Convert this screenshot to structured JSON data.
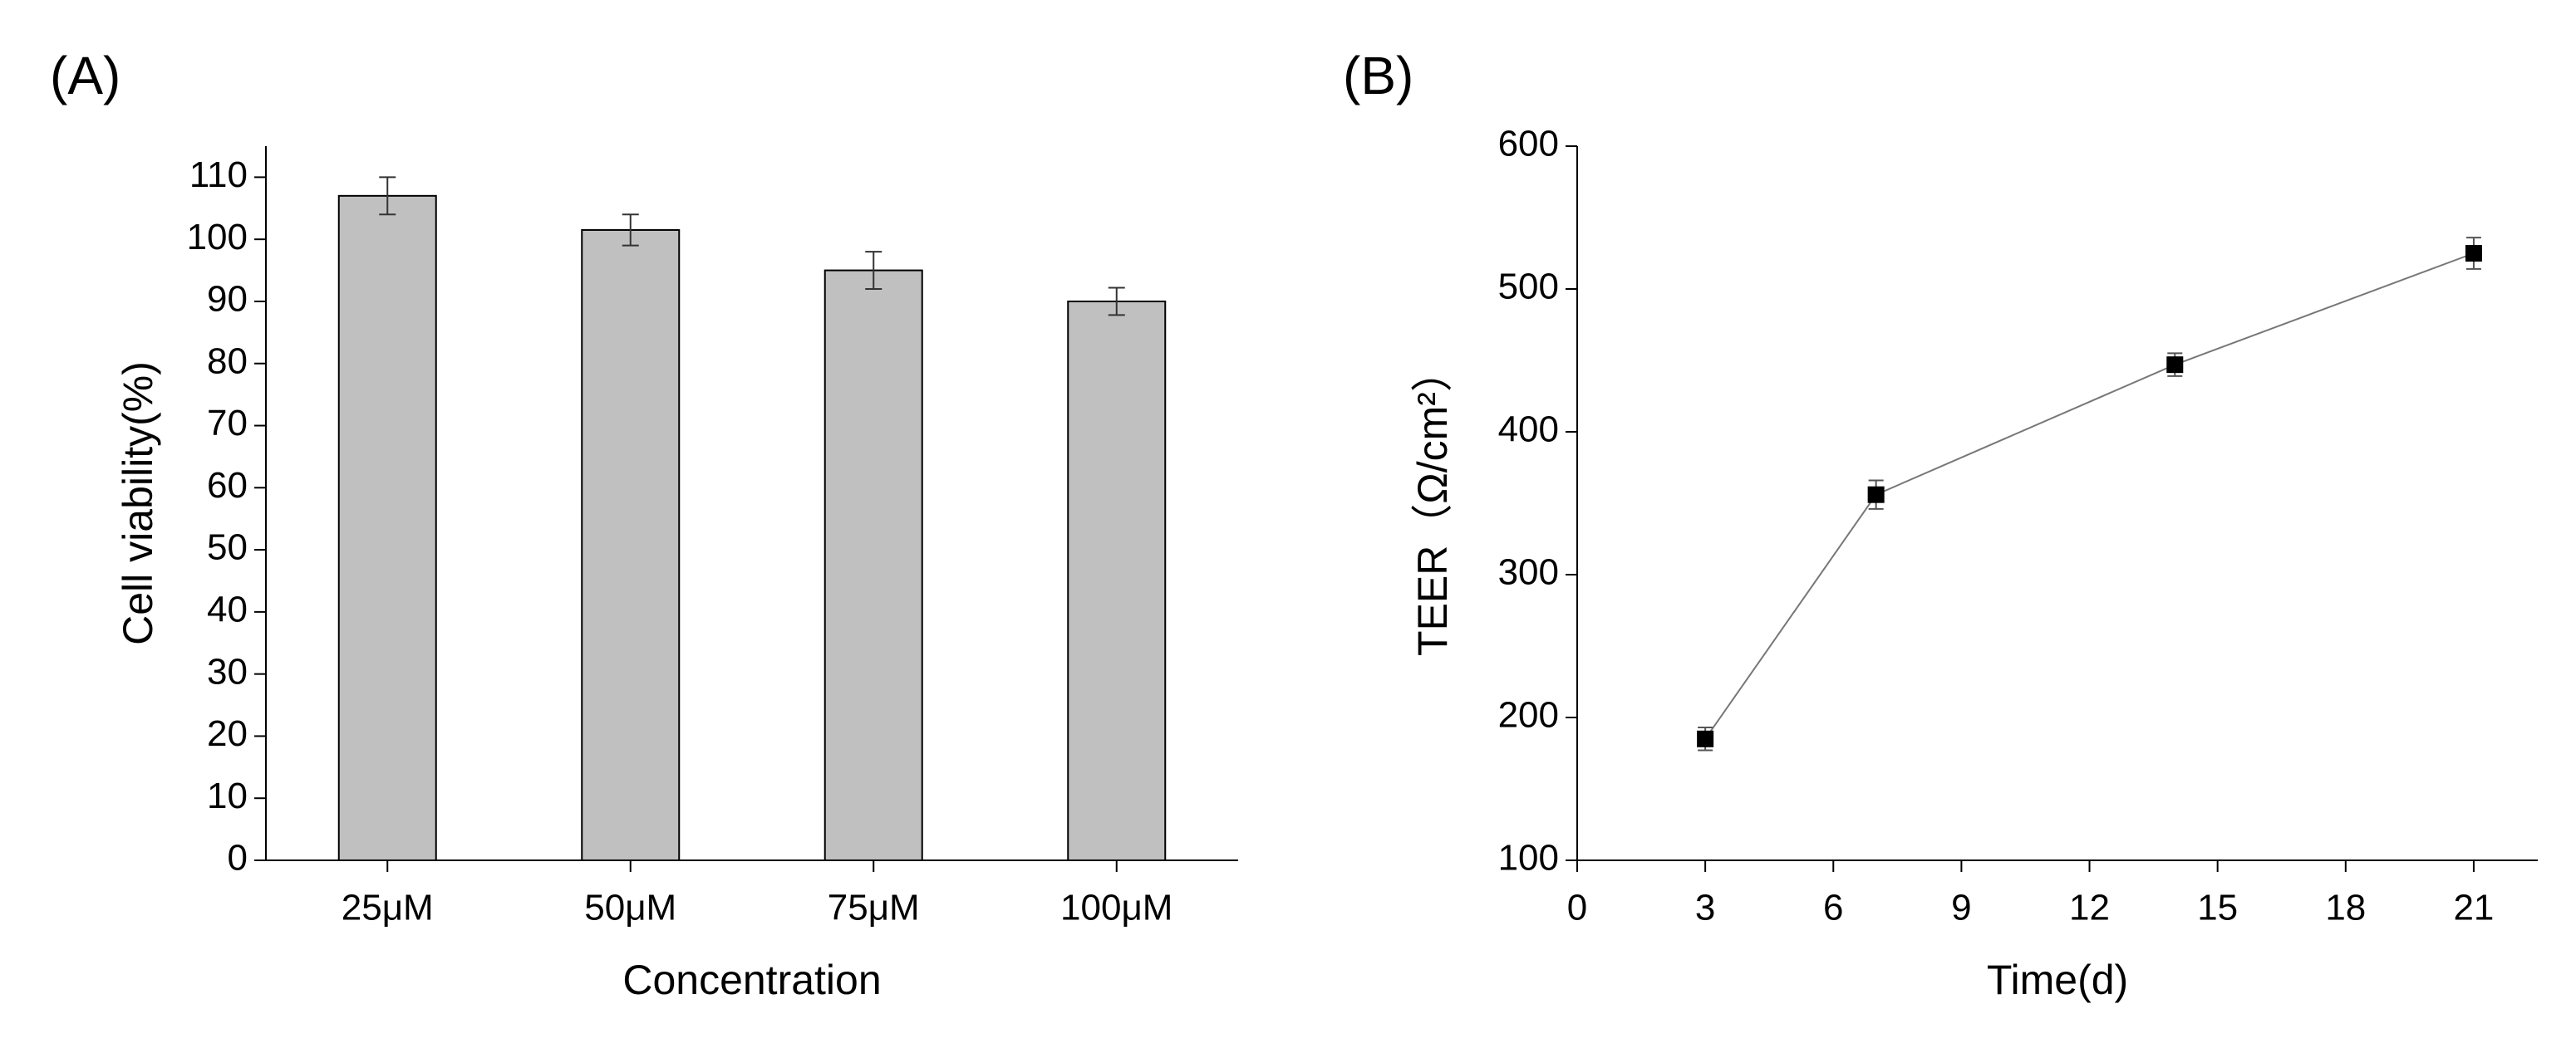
{
  "chart_data": [
    {
      "type": "bar",
      "label": "(A)",
      "xlabel": "Concentration",
      "ylabel": "Cell viability(%)",
      "categories": [
        "25μM",
        "50μM",
        "75μM",
        "100μM"
      ],
      "values": [
        107,
        101.5,
        95,
        90
      ],
      "errors": [
        3,
        2.5,
        3,
        2.2
      ],
      "color": "#c0c0c0",
      "ylim": [
        0,
        115
      ],
      "yticks": [
        0,
        10,
        20,
        30,
        40,
        50,
        60,
        70,
        80,
        90,
        100,
        110
      ]
    },
    {
      "type": "line",
      "label": "(B)",
      "xlabel": "Time(d)",
      "ylabel": "TEER（Ω/cm²）",
      "x": [
        3,
        7,
        14,
        21
      ],
      "values": [
        185,
        356,
        447,
        525
      ],
      "errors": [
        8,
        10,
        8,
        11
      ],
      "color": "#000000",
      "xlim": [
        0,
        22.5
      ],
      "xticks": [
        0,
        3,
        6,
        9,
        12,
        15,
        18,
        21
      ],
      "ylim": [
        100,
        600
      ],
      "yticks": [
        100,
        200,
        300,
        400,
        500,
        600
      ]
    }
  ]
}
